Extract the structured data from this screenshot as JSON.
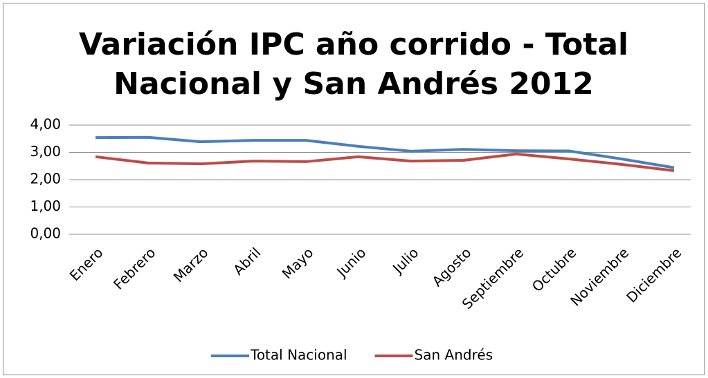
{
  "chart_data": {
    "type": "line",
    "title": "Variación IPC año corrido - Total Nacional y San Andrés 2012",
    "categories": [
      "Enero",
      "Febrero",
      "Marzo",
      "Abril",
      "Mayo",
      "Junio",
      "Julio",
      "Agosto",
      "Septiembre",
      "Octubre",
      "Noviembre",
      "Diciembre"
    ],
    "series": [
      {
        "name": "Total Nacional",
        "color": "#4a7ebb",
        "values": [
          3.54,
          3.55,
          3.39,
          3.44,
          3.44,
          3.22,
          3.04,
          3.11,
          3.06,
          3.05,
          2.76,
          2.44
        ]
      },
      {
        "name": "San Andrés",
        "color": "#be4b48",
        "values": [
          2.84,
          2.61,
          2.58,
          2.68,
          2.66,
          2.84,
          2.68,
          2.71,
          2.94,
          2.76,
          2.56,
          2.33
        ]
      }
    ],
    "ylim": [
      0,
      4
    ],
    "yticks": [
      {
        "value": 0,
        "label": "0,00"
      },
      {
        "value": 1,
        "label": "1,00"
      },
      {
        "value": 2,
        "label": "2,00"
      },
      {
        "value": 3,
        "label": "3,00"
      },
      {
        "value": 4,
        "label": "4,00"
      }
    ],
    "grid": true,
    "legend": "bottom"
  }
}
